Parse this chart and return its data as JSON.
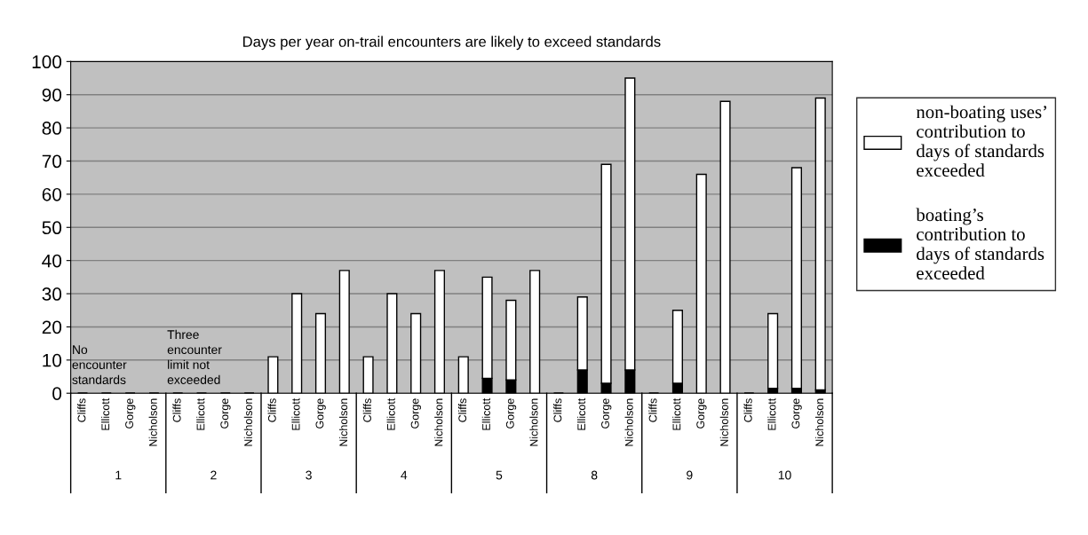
{
  "chart_data": {
    "type": "bar",
    "title": "Days per year on-trail encounters are likely to exceed standards",
    "categories": [
      "Cliffs",
      "Ellicott",
      "Gorge",
      "Nicholson",
      "Cliffs",
      "Ellicott",
      "Gorge",
      "Nicholson",
      "Cliffs",
      "Ellicott",
      "Gorge",
      "Nicholson",
      "Cliffs",
      "Ellicott",
      "Gorge",
      "Nicholson",
      "Cliffs",
      "Ellicott",
      "Gorge",
      "Nicholson",
      "Cliffs",
      "Ellicott",
      "Gorge",
      "Nicholson",
      "Cliffs",
      "Ellicott",
      "Gorge",
      "Nicholson",
      "Cliffs",
      "Ellicott",
      "Gorge",
      "Nicholson"
    ],
    "stacked": true,
    "series": [
      {
        "name": "boating’s contribution to days of standards exceeded",
        "color": "#000000",
        "values": [
          0,
          0,
          0,
          0,
          0,
          0,
          0,
          0,
          0,
          0,
          0,
          0,
          0,
          0,
          0,
          0,
          0,
          4.5,
          4,
          0,
          0,
          7,
          3,
          7,
          0,
          3,
          0,
          0,
          0,
          1.5,
          1.5,
          1
        ]
      },
      {
        "name": "non-boating uses’ contribution to days of standards exceeded",
        "color": "#ffffff",
        "values": [
          0,
          0,
          0,
          0,
          0,
          0,
          0,
          0,
          11,
          30,
          24,
          37,
          11,
          30,
          24,
          37,
          11,
          30.5,
          24,
          37,
          0,
          22,
          66,
          88,
          0,
          22,
          66,
          88,
          0,
          22.5,
          66.5,
          88
        ]
      }
    ],
    "ylim": [
      0,
      100
    ],
    "yticks": [
      0,
      10,
      20,
      30,
      40,
      50,
      60,
      70,
      80,
      90,
      100
    ],
    "grid": "y",
    "legend": "right",
    "annotations": [
      "1",
      "2",
      "3",
      "4",
      "5",
      "8",
      "9",
      "10",
      "No encounter standards",
      "Three encounter limit not exceeded"
    ]
  }
}
